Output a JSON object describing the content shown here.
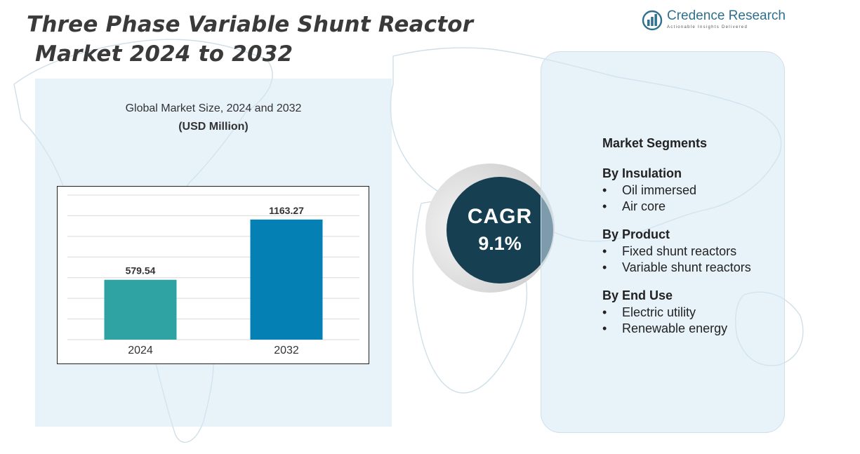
{
  "title": {
    "line1": "Three Phase Variable Shunt Reactor",
    "line2": "Market 2024 to 2032"
  },
  "logo": {
    "name": "Credence Research",
    "tagline": "Actionable Insights Delivered",
    "icon": "bar-chart-circle-icon"
  },
  "chart_heading": {
    "line1": "Global Market Size, 2024 and 2032",
    "line2": "(USD Million)"
  },
  "chart_data": {
    "type": "bar",
    "categories": [
      "2024",
      "2032"
    ],
    "values": [
      579.54,
      1163.27
    ],
    "value_labels": [
      "579.54",
      "1163.27"
    ],
    "colors": [
      "#2fa3a3",
      "#0480b5"
    ],
    "ylim": [
      0,
      1400
    ],
    "grid": true,
    "legend": "none"
  },
  "cagr": {
    "label": "CAGR",
    "value": "9.1%"
  },
  "segments": {
    "heading": "Market Segments",
    "groups": [
      {
        "title": "By Insulation",
        "items": [
          "Oil immersed",
          "Air core"
        ]
      },
      {
        "title": "By Product",
        "items": [
          "Fixed shunt reactors",
          "Variable shunt reactors"
        ]
      },
      {
        "title": "By End Use",
        "items": [
          "Electric utility",
          "Renewable energy"
        ]
      }
    ]
  },
  "colors": {
    "accent": "#163f52",
    "panel": "#d6e8f4",
    "title_text": "#3a3a3a"
  }
}
